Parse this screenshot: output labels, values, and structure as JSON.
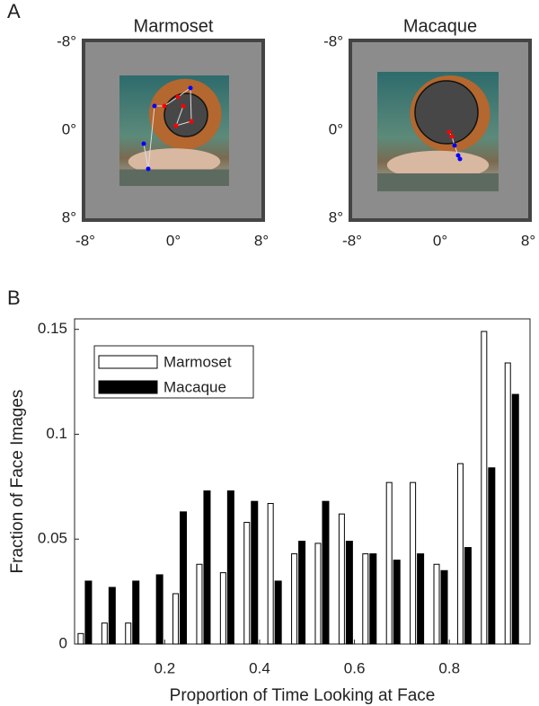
{
  "chart_data": [
    {
      "type": "image",
      "panel_label": "A",
      "title": "Marmoset",
      "xlim": [
        -8,
        8
      ],
      "ylim": [
        8,
        -8
      ],
      "xticks": [
        {
          "value": -8,
          "label": "-8°"
        },
        {
          "value": 0,
          "label": "0°"
        },
        {
          "value": 8,
          "label": "8°"
        }
      ],
      "yticks": [
        {
          "value": -8,
          "label": "-8°"
        },
        {
          "value": 0,
          "label": "0°"
        },
        {
          "value": 8,
          "label": "8°"
        }
      ]
    },
    {
      "type": "image",
      "title": "Macaque",
      "xlim": [
        -8,
        8
      ],
      "ylim": [
        8,
        -8
      ],
      "xticks": [
        {
          "value": -8,
          "label": "-8°"
        },
        {
          "value": 0,
          "label": "0°"
        },
        {
          "value": 8,
          "label": "8°"
        }
      ],
      "yticks": [
        {
          "value": -8,
          "label": "-8°"
        },
        {
          "value": 0,
          "label": "0°"
        },
        {
          "value": 8,
          "label": "8°"
        }
      ]
    },
    {
      "type": "bar",
      "panel_label": "B",
      "xlabel": "Proportion of Time Looking at Face",
      "ylabel": "Fraction of Face Images",
      "x": [
        0.025,
        0.075,
        0.125,
        0.175,
        0.225,
        0.275,
        0.325,
        0.375,
        0.425,
        0.475,
        0.525,
        0.575,
        0.625,
        0.675,
        0.725,
        0.775,
        0.825,
        0.875,
        0.925
      ],
      "series": [
        {
          "name": "Marmoset",
          "color": "#ffffff",
          "values": [
            0.005,
            0.01,
            0.01,
            0,
            0.024,
            0.038,
            0.034,
            0.058,
            0.067,
            0.043,
            0.048,
            0.062,
            0.043,
            0.077,
            0.077,
            0.038,
            0.086,
            0.149,
            0.134
          ]
        },
        {
          "name": "Macaque",
          "color": "#000000",
          "values": [
            0.03,
            0.027,
            0.03,
            0.033,
            0.063,
            0.073,
            0.073,
            0.068,
            0.03,
            0.049,
            0.068,
            0.049,
            0.043,
            0.04,
            0.043,
            0.035,
            0.046,
            0.084,
            0.119
          ]
        }
      ],
      "xlim": [
        0.01,
        0.97
      ],
      "ylim": [
        0,
        0.155
      ],
      "xticks": [
        0.2,
        0.4,
        0.6,
        0.8
      ],
      "yticks": [
        0,
        0.05,
        0.1,
        0.15
      ],
      "legend": "upper-left"
    }
  ]
}
